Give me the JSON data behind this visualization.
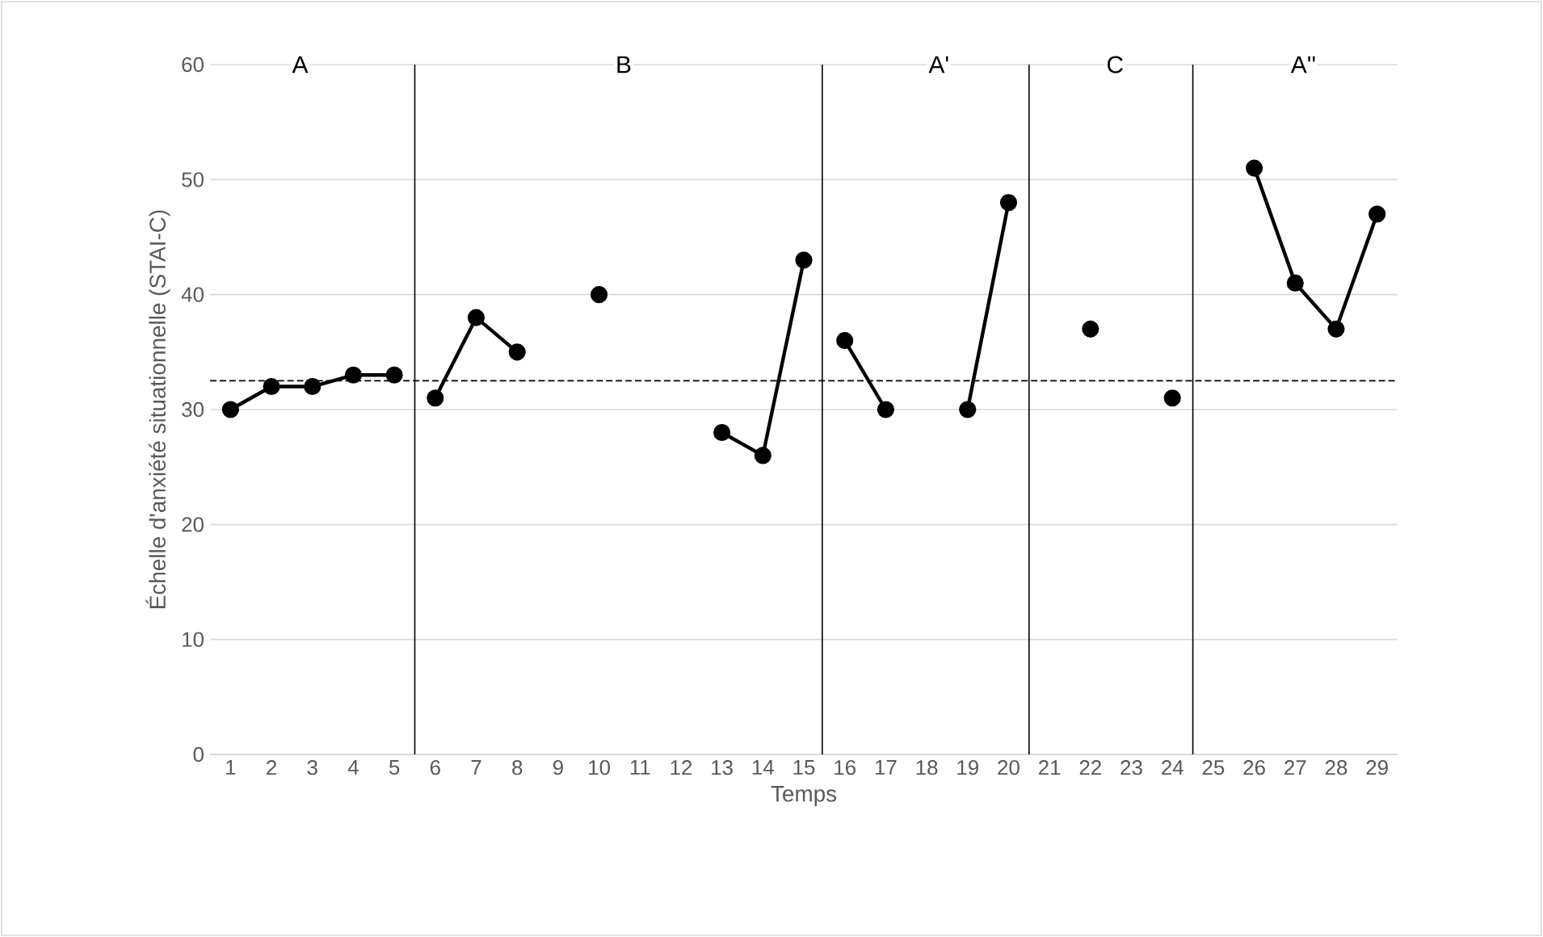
{
  "chart_data": {
    "type": "line",
    "xlabel": "Temps",
    "ylabel": "Échelle d'anxiété situationnelle (STAI-C)",
    "series": [
      {
        "color": "#000000",
        "x": [
          1,
          2,
          3,
          4,
          5
        ],
        "values": [
          30,
          32,
          32,
          33,
          33
        ]
      },
      {
        "color": "#000000",
        "x": [
          6,
          7,
          8
        ],
        "values": [
          31,
          38,
          35
        ]
      },
      {
        "color": "#000000",
        "x": [
          10
        ],
        "values": [
          40
        ]
      },
      {
        "color": "#000000",
        "x": [
          13,
          14,
          15
        ],
        "values": [
          28,
          26,
          43
        ]
      },
      {
        "color": "#000000",
        "x": [
          16,
          17
        ],
        "values": [
          36,
          30
        ]
      },
      {
        "color": "#000000",
        "x": [
          19,
          20
        ],
        "values": [
          30,
          48
        ]
      },
      {
        "color": "#000000",
        "x": [
          22
        ],
        "values": [
          37
        ]
      },
      {
        "color": "#000000",
        "x": [
          24
        ],
        "values": [
          31
        ]
      },
      {
        "color": "#000000",
        "x": [
          26,
          27,
          28,
          29
        ],
        "values": [
          51,
          41,
          37,
          47
        ]
      }
    ],
    "xlim": [
      0.5,
      29.5
    ],
    "xticks": [
      1,
      2,
      3,
      4,
      5,
      6,
      7,
      8,
      9,
      10,
      11,
      12,
      13,
      14,
      15,
      16,
      17,
      18,
      19,
      20,
      21,
      22,
      23,
      24,
      25,
      26,
      27,
      28,
      29
    ],
    "ylim": [
      0,
      60
    ],
    "yticks": [
      0,
      10,
      20,
      30,
      40,
      50,
      60
    ],
    "grid": "y",
    "marker": "circle",
    "line_style": "solid",
    "ref_lines": [
      {
        "axis": "y",
        "value": 32.5,
        "line_style": "dashed",
        "color": "#000000"
      },
      {
        "axis": "x",
        "value": 5.5,
        "line_style": "solid",
        "color": "#000000"
      },
      {
        "axis": "x",
        "value": 15.45,
        "line_style": "solid",
        "color": "#000000"
      },
      {
        "axis": "x",
        "value": 20.5,
        "line_style": "solid",
        "color": "#000000"
      },
      {
        "axis": "x",
        "value": 24.5,
        "line_style": "solid",
        "color": "#000000"
      }
    ],
    "annotations": [
      {
        "text": "A",
        "x": 2.7,
        "y": 60
      },
      {
        "text": "B",
        "x": 10.6,
        "y": 60
      },
      {
        "text": "A'",
        "x": 18.3,
        "y": 60
      },
      {
        "text": "C",
        "x": 22.6,
        "y": 60
      },
      {
        "text": "A''",
        "x": 27.2,
        "y": 60
      }
    ]
  }
}
